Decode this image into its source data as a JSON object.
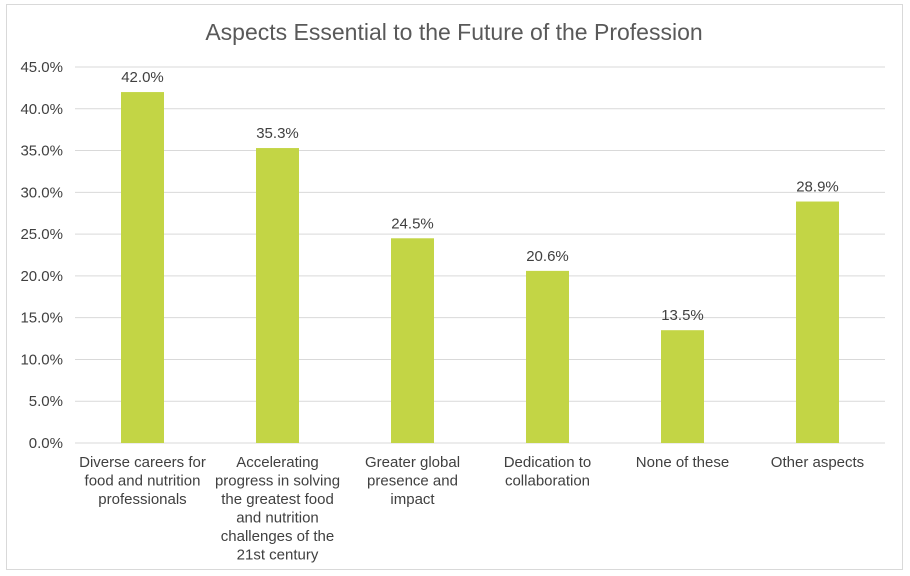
{
  "chart_data": {
    "type": "bar",
    "title": "Aspects Essential to the Future of the Profession",
    "categories": [
      "Diverse careers for food and nutrition professionals",
      "Accelerating progress in solving the greatest food and nutrition challenges of the 21st century",
      "Greater global presence and impact",
      "Dedication to collaboration",
      "None of these",
      "Other aspects"
    ],
    "category_lines": [
      [
        "Diverse careers for",
        "food and nutrition",
        "professionals"
      ],
      [
        "Accelerating",
        "progress in solving",
        "the greatest food",
        "and nutrition",
        "challenges of the",
        "21st century"
      ],
      [
        "Greater global",
        "presence and",
        "impact"
      ],
      [
        "Dedication to",
        "collaboration"
      ],
      [
        "None of these"
      ],
      [
        "Other aspects"
      ]
    ],
    "values": [
      42.0,
      35.3,
      24.5,
      20.6,
      13.5,
      28.9
    ],
    "data_labels": [
      "42.0%",
      "35.3%",
      "24.5%",
      "20.6%",
      "13.5%",
      "28.9%"
    ],
    "y_ticks": [
      "0.0%",
      "5.0%",
      "10.0%",
      "15.0%",
      "20.0%",
      "25.0%",
      "30.0%",
      "35.0%",
      "40.0%",
      "45.0%"
    ],
    "ylim": [
      0,
      45
    ],
    "xlabel": "",
    "ylabel": "",
    "grid": true,
    "legend": "none",
    "colors": {
      "bar": "#c3d545",
      "grid": "#d9d9d9",
      "axis": "#d9d9d9",
      "text": "#404040",
      "title": "#595959"
    }
  }
}
